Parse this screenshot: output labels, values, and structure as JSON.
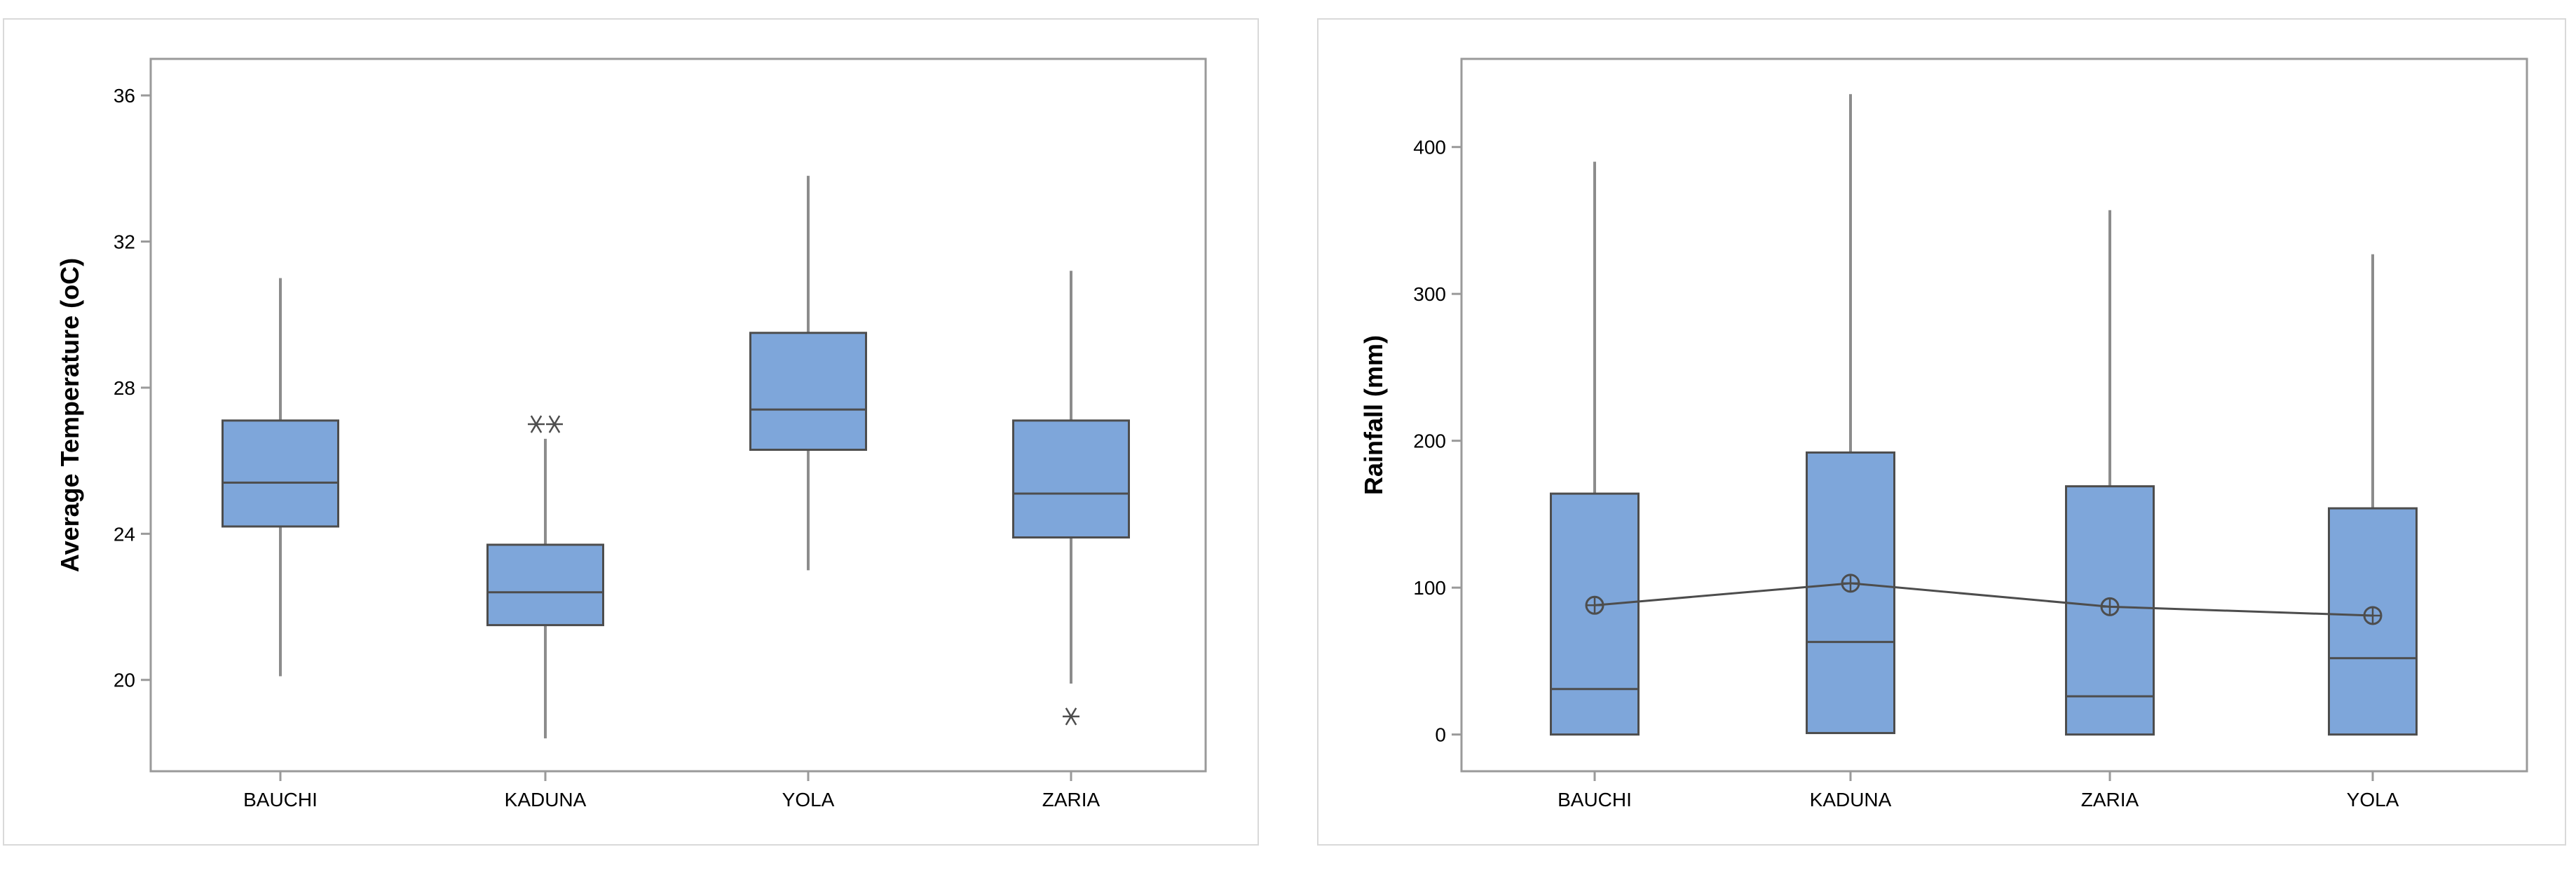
{
  "colors": {
    "box_fill": "#7EA6DA",
    "box_stroke": "#4D4D4D",
    "whisker": "#8C8C8C",
    "frame": "#9A9A9A",
    "panel_border": "#D9D9D9",
    "mean_line": "#4D4D4D"
  },
  "chart_data": [
    {
      "type": "box",
      "title": "",
      "xlabel": "",
      "ylabel": "Average Temperature (oC)",
      "ylim": [
        17.5,
        37
      ],
      "yticks": [
        20,
        24,
        28,
        32,
        36
      ],
      "ytick_labels": [
        "20",
        "24",
        "28",
        "32",
        "36"
      ],
      "categories": [
        "BAUCHI",
        "KADUNA",
        "YOLA",
        "ZARIA"
      ],
      "boxes": [
        {
          "category": "BAUCHI",
          "whisker_low": 20.1,
          "q1": 24.2,
          "median": 25.4,
          "q3": 27.1,
          "whisker_high": 31.0,
          "outliers": []
        },
        {
          "category": "KADUNA",
          "whisker_low": 18.4,
          "q1": 21.5,
          "median": 22.4,
          "q3": 23.7,
          "whisker_high": 26.6,
          "outliers": [
            27.0,
            27.0
          ]
        },
        {
          "category": "YOLA",
          "whisker_low": 23.0,
          "q1": 26.3,
          "median": 27.4,
          "q3": 29.5,
          "whisker_high": 33.8,
          "outliers": []
        },
        {
          "category": "ZARIA",
          "whisker_low": 19.9,
          "q1": 23.9,
          "median": 25.1,
          "q3": 27.1,
          "whisker_high": 31.2,
          "outliers": [
            19.0
          ]
        }
      ],
      "grid": false,
      "mean_connect": false
    },
    {
      "type": "box",
      "title": "",
      "xlabel": "",
      "ylabel": "Rainfall (mm)",
      "ylim": [
        -25,
        460
      ],
      "yticks": [
        0,
        100,
        200,
        300,
        400
      ],
      "ytick_labels": [
        "0",
        "100",
        "200",
        "300",
        "400"
      ],
      "categories": [
        "BAUCHI",
        "KADUNA",
        "ZARIA",
        "YOLA"
      ],
      "boxes": [
        {
          "category": "BAUCHI",
          "whisker_low": 0,
          "q1": 0,
          "median": 31,
          "q3": 164,
          "whisker_high": 390,
          "mean": 88,
          "outliers": []
        },
        {
          "category": "KADUNA",
          "whisker_low": 1,
          "q1": 1,
          "median": 63,
          "q3": 192,
          "whisker_high": 436,
          "mean": 103,
          "outliers": []
        },
        {
          "category": "ZARIA",
          "whisker_low": 0,
          "q1": 0,
          "median": 26,
          "q3": 169,
          "whisker_high": 357,
          "mean": 87,
          "outliers": []
        },
        {
          "category": "YOLA",
          "whisker_low": 0,
          "q1": 0,
          "median": 52,
          "q3": 154,
          "whisker_high": 327,
          "mean": 81,
          "outliers": []
        }
      ],
      "grid": false,
      "mean_connect": true
    }
  ]
}
